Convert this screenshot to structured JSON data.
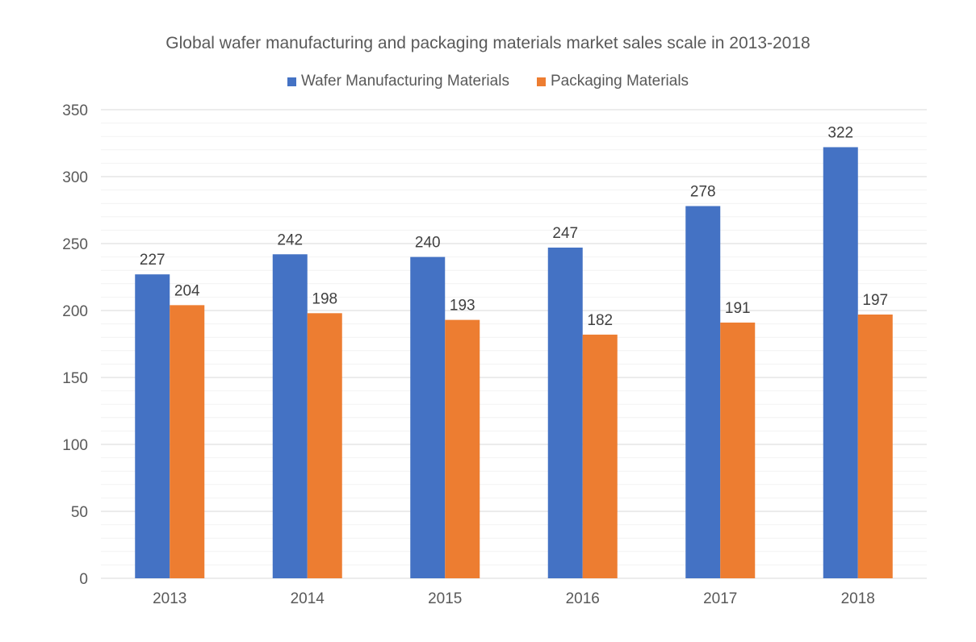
{
  "chart_data": {
    "type": "bar",
    "title": "Global wafer manufacturing and packaging materials market sales scale in 2013-2018",
    "xlabel": "",
    "ylabel": "",
    "categories": [
      "2013",
      "2014",
      "2015",
      "2016",
      "2017",
      "2018"
    ],
    "series": [
      {
        "name": "Wafer Manufacturing Materials",
        "values": [
          227,
          242,
          240,
          247,
          278,
          322
        ],
        "color": "#4472C4"
      },
      {
        "name": "Packaging Materials",
        "values": [
          204,
          198,
          193,
          182,
          191,
          197
        ],
        "color": "#ED7D31"
      }
    ],
    "ylim": [
      0,
      350
    ],
    "yticks": [
      "0",
      "50",
      "100",
      "150",
      "200",
      "250",
      "300",
      "350"
    ],
    "grid": true,
    "legend_position": "top"
  }
}
